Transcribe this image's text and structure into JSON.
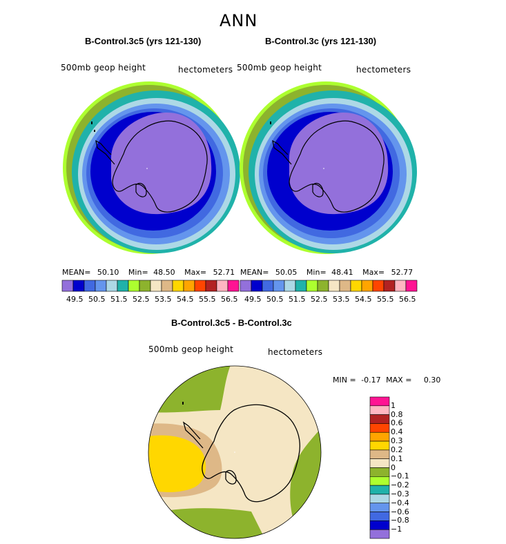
{
  "figure": {
    "title": "ANN"
  },
  "panels": [
    {
      "title": "B-Control.3c5 (yrs 121-130)",
      "variable": "500mb geop height",
      "units": "hectometers",
      "mean_label": "MEAN=",
      "mean": "50.10",
      "min_label": "Min=",
      "min": "48.50",
      "max_label": "Max=",
      "max": "52.71"
    },
    {
      "title": "B-Control.3c (yrs 121-130)",
      "variable": "500mb geop height",
      "units": "hectometers",
      "mean_label": "MEAN=",
      "mean": "50.05",
      "min_label": "Min=",
      "min": "48.41",
      "max_label": "Max=",
      "max": "52.77"
    }
  ],
  "top_colorbar": {
    "colors": [
      "#9370DB",
      "#0000CD",
      "#4169E1",
      "#6495ED",
      "#ADD8E6",
      "#20B2AA",
      "#ADFF2F",
      "#8DB32D",
      "#F5E6C4",
      "#DEB887",
      "#FFD700",
      "#FFA500",
      "#FF4500",
      "#B22222",
      "#FFB6C1",
      "#FF1493"
    ],
    "tick_labels": [
      "49.5",
      "50.5",
      "51.5",
      "52.5",
      "53.5",
      "54.5",
      "55.5",
      "56.5"
    ]
  },
  "diff_panel": {
    "title": "B-Control.3c5 - B-Control.3c",
    "variable": "500mb geop height",
    "units": "hectometers",
    "min_label": "MIN =",
    "min": "-0.17",
    "max_label": "MAX =",
    "max": "0.30"
  },
  "diff_colorbar": {
    "colors_top_to_bottom": [
      "#FF1493",
      "#FFB6C1",
      "#B22222",
      "#FF4500",
      "#FFA500",
      "#FFD700",
      "#DEB887",
      "#F5E6C4",
      "#8DB32D",
      "#ADFF2F",
      "#20B2AA",
      "#ADD8E6",
      "#6495ED",
      "#4169E1",
      "#0000CD",
      "#9370DB"
    ],
    "tick_labels_top_to_bottom": [
      "1",
      "0.8",
      "0.6",
      "0.4",
      "0.3",
      "0.2",
      "0.1",
      "0",
      "−0.1",
      "−0.2",
      "−0.3",
      "−0.4",
      "−0.6",
      "−0.8",
      "−1"
    ]
  }
}
